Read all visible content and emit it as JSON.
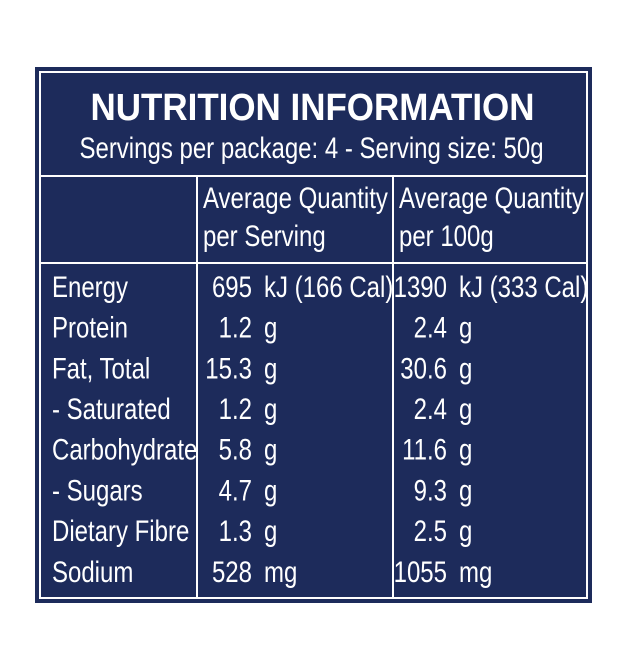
{
  "header": {
    "title": "NUTRITION INFORMATION",
    "subtitle": "Servings per package: 4 - Serving size: 50g"
  },
  "table": {
    "columns": [
      [
        "Average Quantity",
        "per Serving"
      ],
      [
        "Average Quantity",
        "per 100g"
      ]
    ],
    "rows": [
      [
        "Energy",
        "695",
        "kJ (166 Cal)",
        "1390",
        "kJ (333 Cal)"
      ],
      [
        "Protein",
        "1.2",
        "g",
        "2.4",
        "g"
      ],
      [
        "Fat, Total",
        "15.3",
        "g",
        "30.6",
        "g"
      ],
      [
        "- Saturated",
        "1.2",
        "g",
        "2.4",
        "g"
      ],
      [
        "Carbohydrate",
        "5.8",
        "g",
        "11.6",
        "g"
      ],
      [
        "- Sugars",
        "4.7",
        "g",
        "9.3",
        "g"
      ],
      [
        "Dietary Fibre",
        "1.3",
        "g",
        "2.5",
        "g"
      ],
      [
        "Sodium",
        "528",
        "mg",
        "1055",
        "mg"
      ]
    ]
  }
}
